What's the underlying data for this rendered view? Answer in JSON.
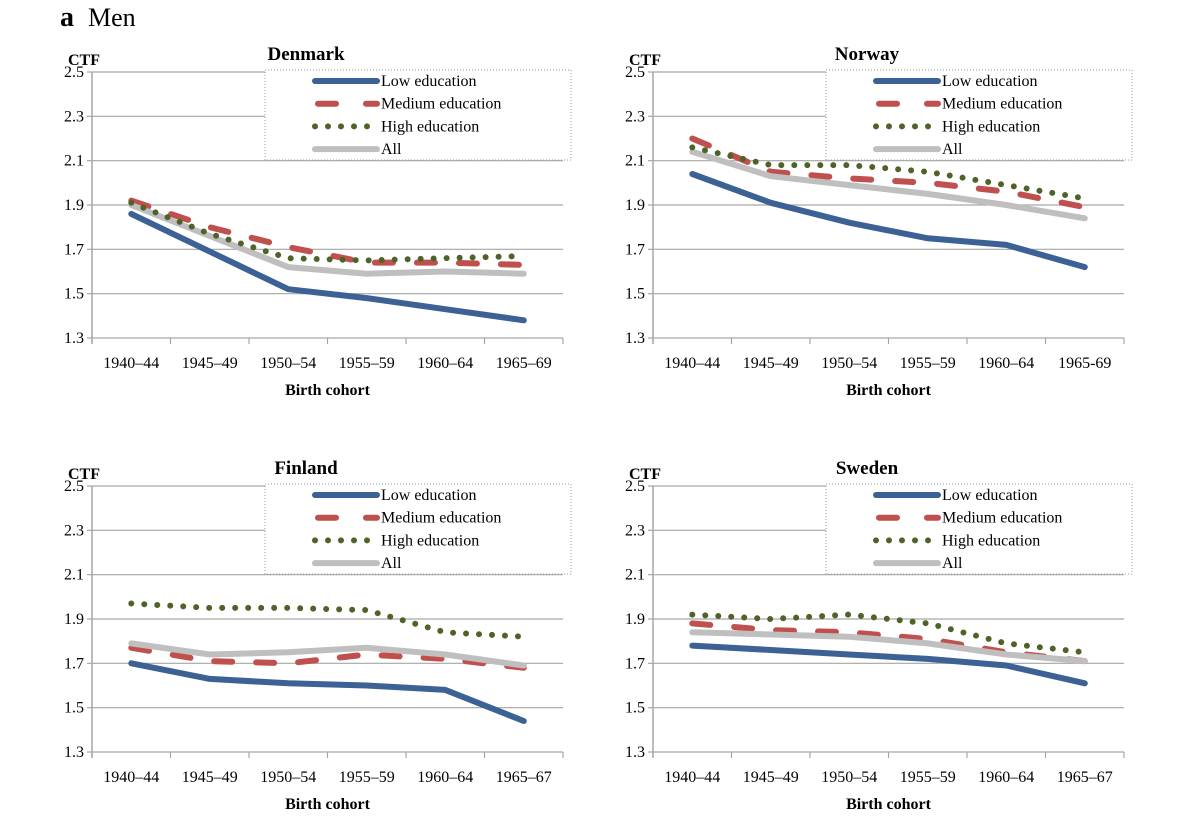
{
  "figure": {
    "label": "a",
    "title": "Men"
  },
  "chart_data": {
    "type": "line",
    "ylabel": "CTF",
    "xlabel": "Birth cohort",
    "ylim": [
      1.3,
      2.5
    ],
    "yticks": [
      "2.5",
      "2.3",
      "2.1",
      "1.9",
      "1.7",
      "1.5",
      "1.3"
    ],
    "grid": true,
    "legend_placement": "top-right",
    "legend": [
      "Low education",
      "Medium education",
      "High education",
      "All"
    ],
    "colors": {
      "low": "#3B6195",
      "medium": "#C0504D",
      "high": "#4F6228",
      "all": "#BFBFBF"
    },
    "panels": [
      {
        "title": "Denmark",
        "categories": [
          "1940–44",
          "1945–49",
          "1950–54",
          "1955–59",
          "1960–64",
          "1965–69"
        ],
        "series": [
          {
            "name": "Low education",
            "key": "low",
            "values": [
              1.86,
              1.69,
              1.52,
              1.48,
              1.43,
              1.38
            ]
          },
          {
            "name": "Medium education",
            "key": "medium",
            "values": [
              1.92,
              1.8,
              1.71,
              1.64,
              1.64,
              1.63
            ]
          },
          {
            "name": "High education",
            "key": "high",
            "values": [
              1.91,
              1.77,
              1.66,
              1.65,
              1.66,
              1.67
            ]
          },
          {
            "name": "All",
            "key": "all",
            "values": [
              1.9,
              1.76,
              1.62,
              1.59,
              1.6,
              1.59
            ]
          }
        ]
      },
      {
        "title": "Norway",
        "categories": [
          "1940–44",
          "1945–49",
          "1950–54",
          "1955–59",
          "1960–64",
          "1965-69"
        ],
        "series": [
          {
            "name": "Low education",
            "key": "low",
            "values": [
              2.04,
              1.91,
              1.82,
              1.75,
              1.72,
              1.62
            ]
          },
          {
            "name": "Medium education",
            "key": "medium",
            "values": [
              2.2,
              2.05,
              2.02,
              2.0,
              1.96,
              1.89
            ]
          },
          {
            "name": "High education",
            "key": "high",
            "values": [
              2.16,
              2.08,
              2.08,
              2.05,
              1.99,
              1.93
            ]
          },
          {
            "name": "All",
            "key": "all",
            "values": [
              2.14,
              2.03,
              1.99,
              1.95,
              1.9,
              1.84
            ]
          }
        ]
      },
      {
        "title": "Finland",
        "categories": [
          "1940–44",
          "1945–49",
          "1950–54",
          "1955–59",
          "1960–64",
          "1965–67"
        ],
        "series": [
          {
            "name": "Low education",
            "key": "low",
            "values": [
              1.7,
              1.63,
              1.61,
              1.6,
              1.58,
              1.44
            ]
          },
          {
            "name": "Medium education",
            "key": "medium",
            "values": [
              1.77,
              1.71,
              1.7,
              1.74,
              1.72,
              1.68
            ]
          },
          {
            "name": "High education",
            "key": "high",
            "values": [
              1.97,
              1.95,
              1.95,
              1.94,
              1.84,
              1.82
            ]
          },
          {
            "name": "All",
            "key": "all",
            "values": [
              1.79,
              1.74,
              1.75,
              1.77,
              1.74,
              1.69
            ]
          }
        ]
      },
      {
        "title": "Sweden",
        "categories": [
          "1940–44",
          "1945–49",
          "1950–54",
          "1955–59",
          "1960–64",
          "1965–67"
        ],
        "series": [
          {
            "name": "Low education",
            "key": "low",
            "values": [
              1.78,
              1.76,
              1.74,
              1.72,
              1.69,
              1.61
            ]
          },
          {
            "name": "Medium education",
            "key": "medium",
            "values": [
              1.88,
              1.85,
              1.84,
              1.81,
              1.75,
              1.71
            ]
          },
          {
            "name": "High education",
            "key": "high",
            "values": [
              1.92,
              1.9,
              1.92,
              1.88,
              1.79,
              1.75
            ]
          },
          {
            "name": "All",
            "key": "all",
            "values": [
              1.84,
              1.83,
              1.82,
              1.79,
              1.74,
              1.71
            ]
          }
        ]
      }
    ]
  }
}
